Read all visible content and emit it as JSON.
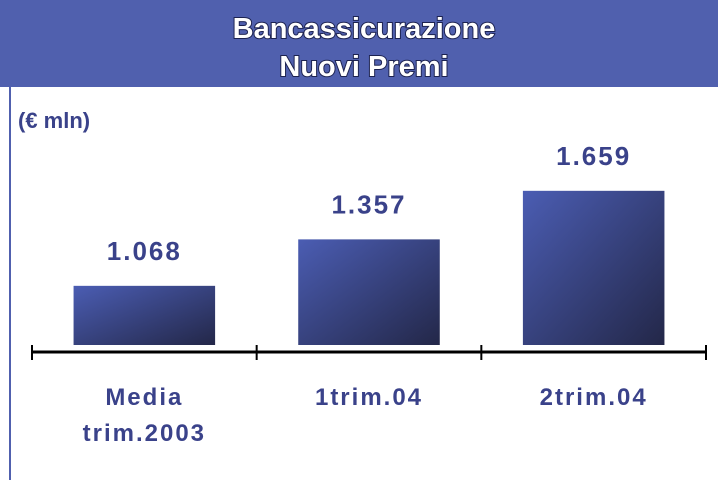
{
  "chart_data": {
    "type": "bar",
    "title": "Bancassicurazione",
    "subtitle": "Nuovi Premi",
    "unit_label": "(€ mln)",
    "categories": [
      "Media trim.2003",
      "1trim.04",
      "2trim.04"
    ],
    "values": [
      1068,
      1357,
      1659
    ],
    "value_labels": [
      "1.068",
      "1.357",
      "1.659"
    ],
    "color": "#4a5cb0",
    "ylim": [
      700,
      2000
    ]
  }
}
